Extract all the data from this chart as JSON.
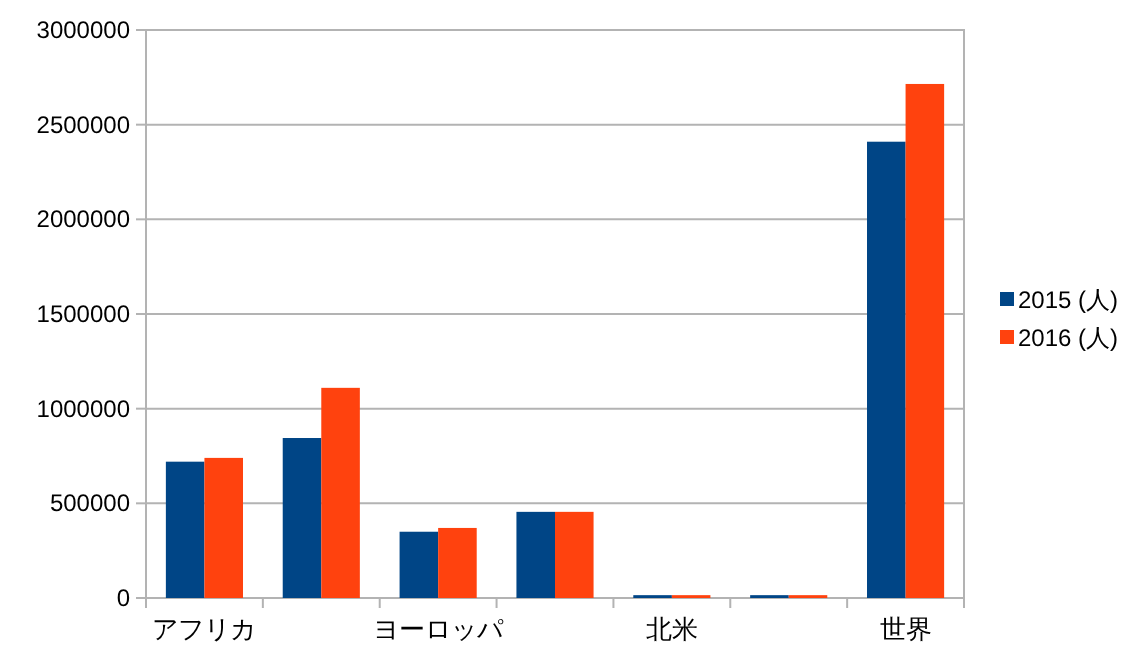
{
  "chart_data": {
    "type": "bar",
    "categories": [
      "アフリカ",
      null,
      "ヨーロッパ",
      null,
      "北米",
      null,
      "世界"
    ],
    "series": [
      {
        "name": "2015 (人)",
        "color": "#004586",
        "values": [
          720000,
          845000,
          350000,
          455000,
          15000,
          15000,
          2410000
        ]
      },
      {
        "name": "2016 (人)",
        "color": "#ff420e",
        "values": [
          740000,
          1110000,
          370000,
          455000,
          15000,
          15000,
          2715000
        ]
      }
    ],
    "ylim": [
      0,
      3000000
    ],
    "yticks": [
      0,
      500000,
      1000000,
      1500000,
      2000000,
      2500000,
      3000000
    ],
    "grid": "y",
    "legend": "right"
  }
}
